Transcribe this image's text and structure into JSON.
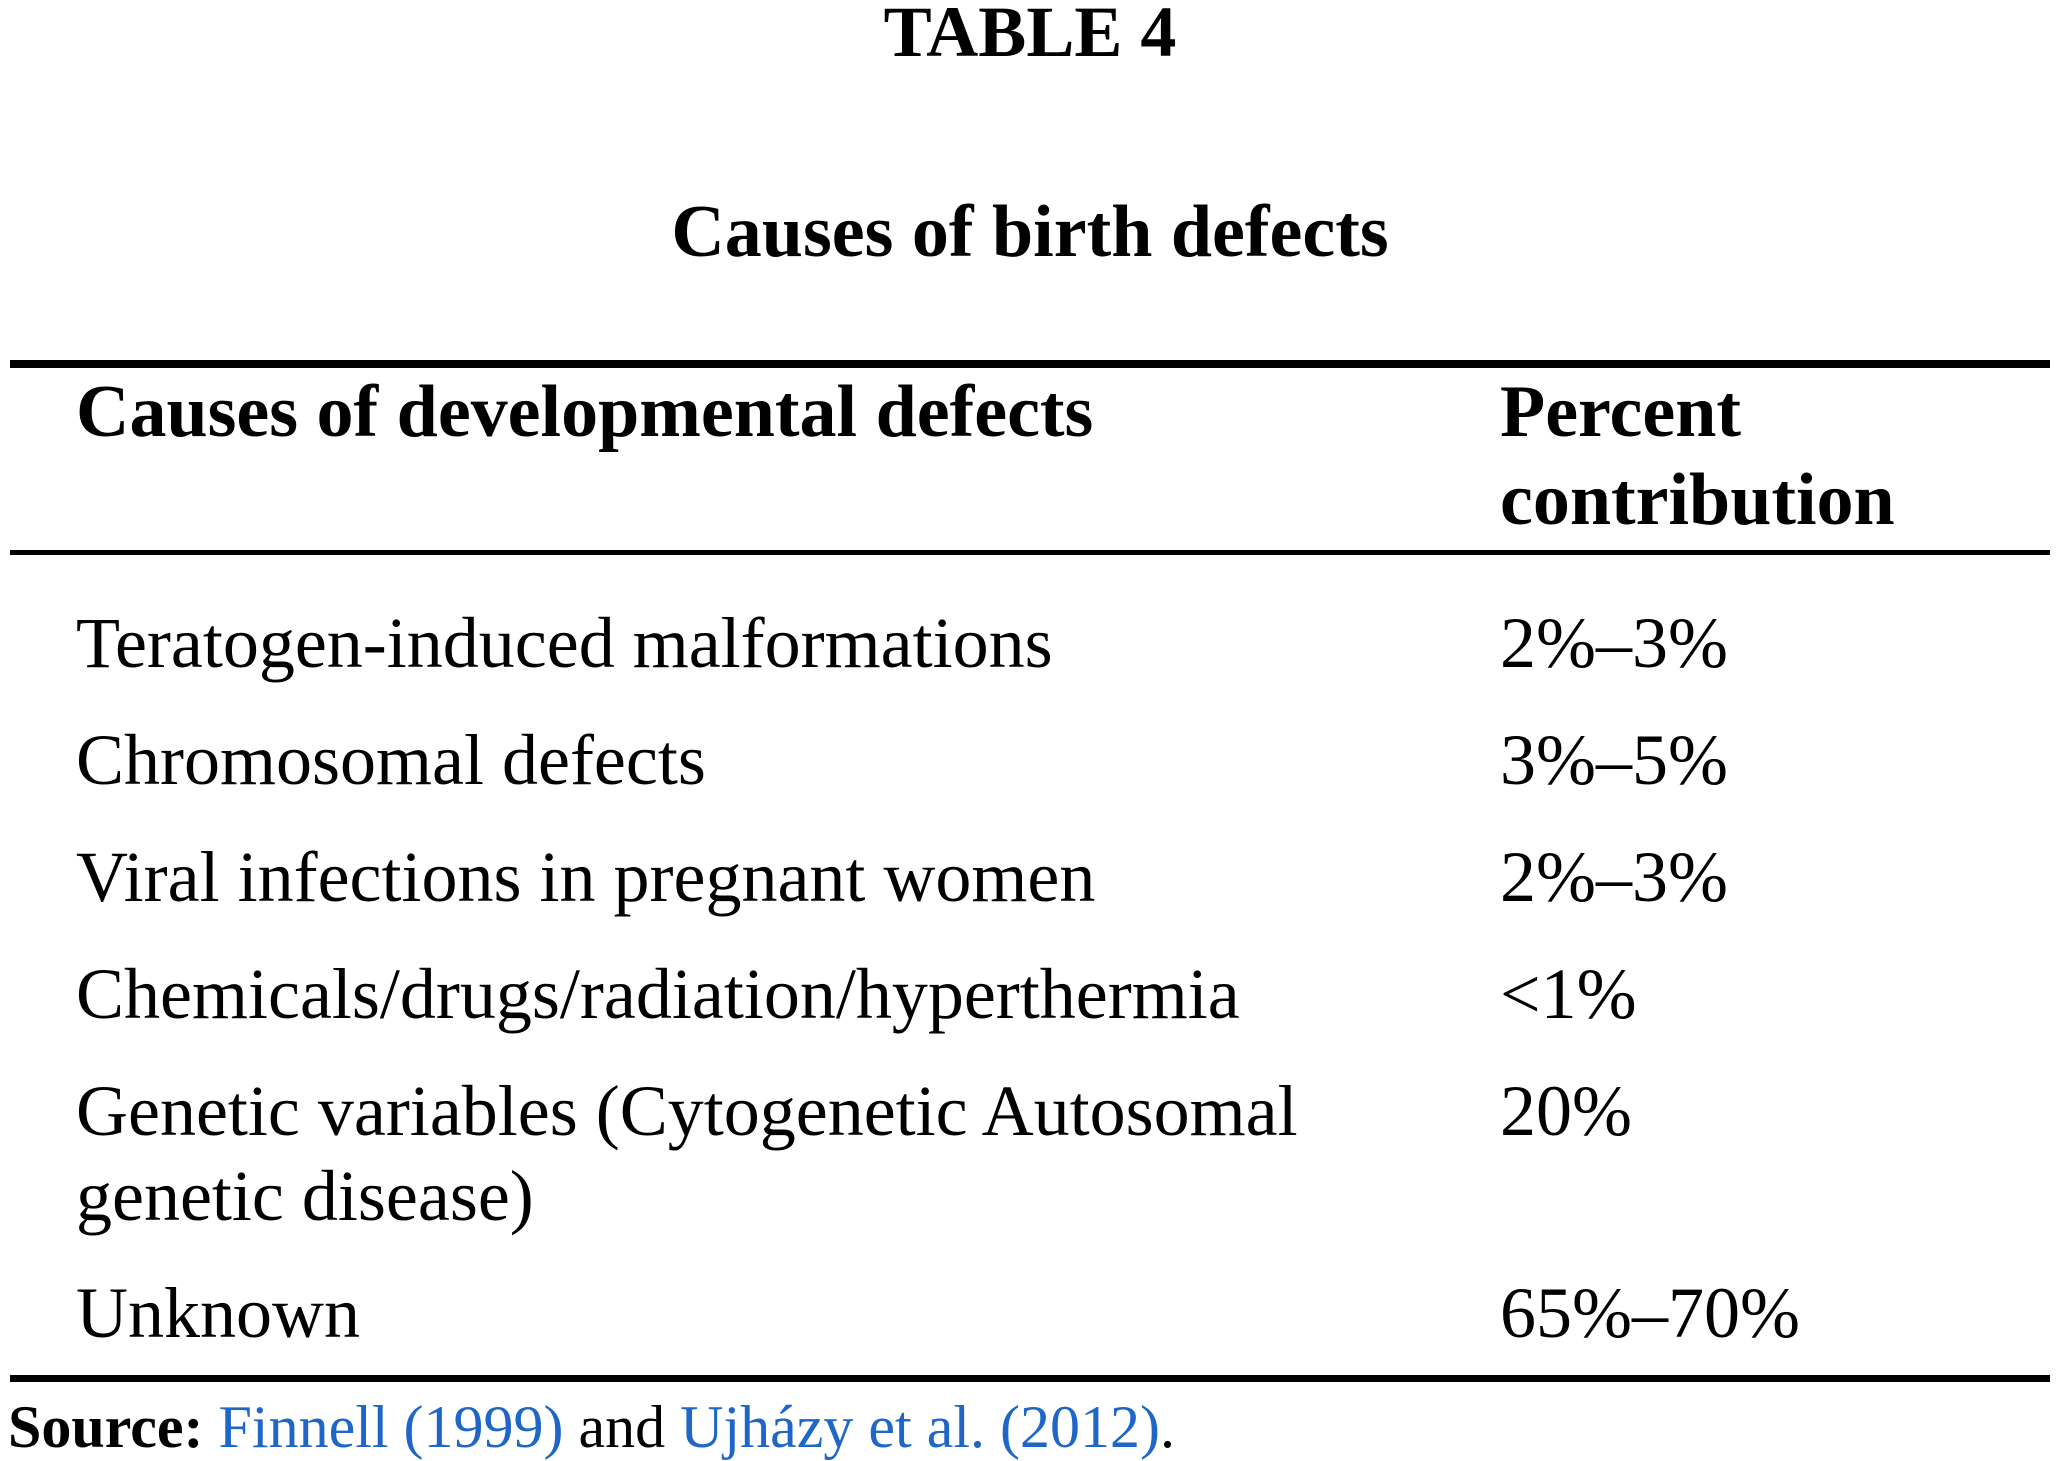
{
  "page": {
    "title": "TABLE 4",
    "caption": "Causes of birth defects"
  },
  "table": {
    "columns": [
      "Causes of developmental defects",
      "Percent contribution"
    ],
    "rows": [
      {
        "cause": "Teratogen-induced malformations",
        "percent": "2%–3%"
      },
      {
        "cause": "Chromosomal defects",
        "percent": "3%–5%"
      },
      {
        "cause": "Viral infections in pregnant women",
        "percent": "2%–3%"
      },
      {
        "cause": "Chemicals/drugs/radiation/hyperthermia",
        "percent": "<1%"
      },
      {
        "cause": "Genetic variables (Cytogenetic Autosomal genetic disease)",
        "percent": "20%"
      },
      {
        "cause": "Unknown",
        "percent": "65%–70%"
      }
    ]
  },
  "source": {
    "prefix": "Source:",
    "links": [
      {
        "text": "Finnell (1999)"
      },
      {
        "text": "Ujházy et al. (2012)"
      }
    ],
    "connector": "and",
    "suffix": "."
  },
  "colors": {
    "link_blue": "#1E66C8",
    "text": "#000000",
    "rule": "#000000"
  }
}
